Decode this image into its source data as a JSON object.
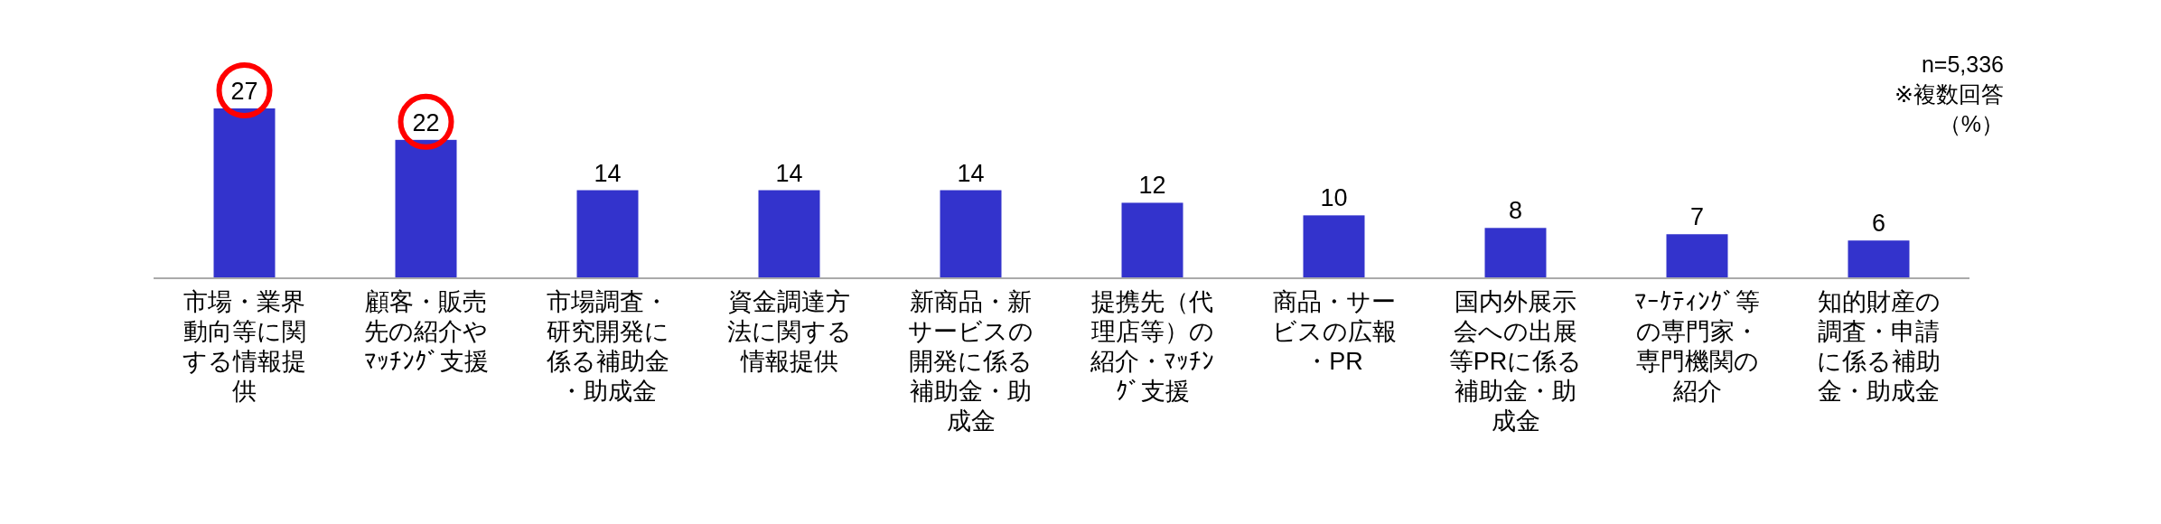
{
  "chart_data": {
    "type": "bar",
    "categories": [
      "市場・業界動向等に関する情報提供",
      "顧客・販売先の紹介やﾏｯﾁﾝｸﾞ支援",
      "市場調査・研究開発に係る補助金・助成金",
      "資金調達方法に関する情報提供",
      "新商品・新サービスの開発に係る補助金・助成金",
      "提携先（代理店等）の紹介・ﾏｯﾁﾝｸﾞ支援",
      "商品・サービスの広報・PR",
      "国内外展示会への出展等PRに係る補助金・助成金",
      "ﾏｰｹﾃｨﾝｸﾞ等の専門家・専門機関の紹介",
      "知的財産の調査・申請に係る補助金・助成金"
    ],
    "values": [
      27,
      22,
      14,
      14,
      14,
      12,
      10,
      8,
      7,
      6
    ],
    "color": "#3333cc",
    "data_labels": true,
    "annotations": [
      "n=5,336",
      "※複数回答",
      "（%）"
    ]
  }
}
